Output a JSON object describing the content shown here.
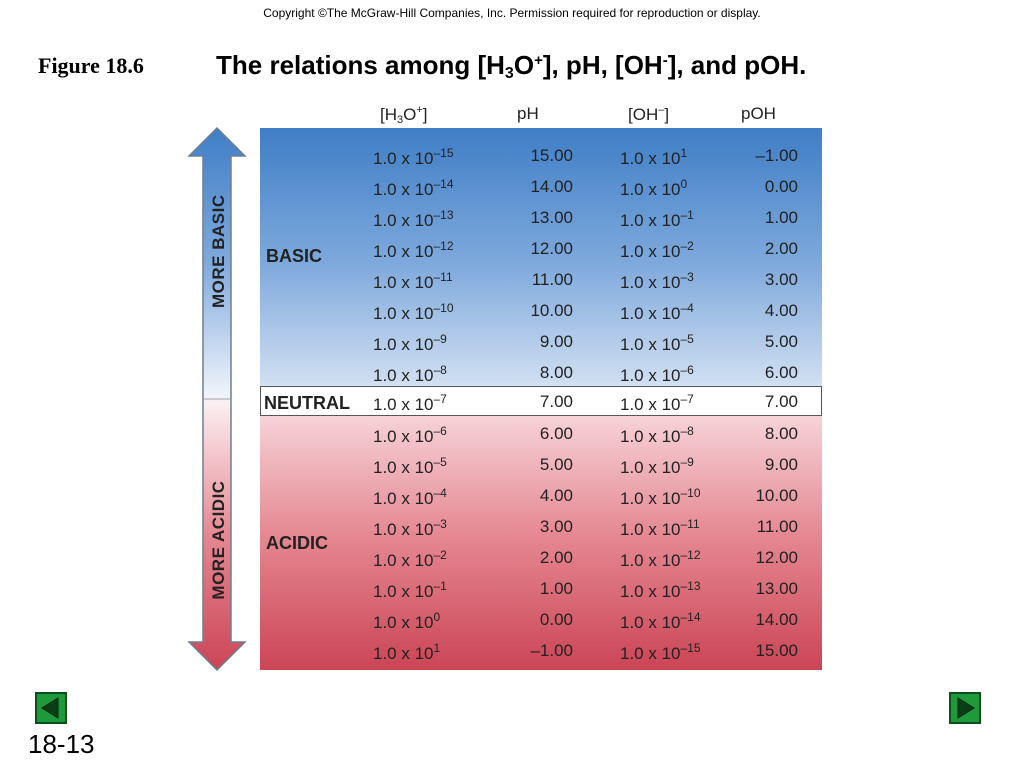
{
  "copyright": "Copyright ©The McGraw-Hill Companies, Inc.  Permission required for reproduction or display.",
  "figure_label": "Figure 18.6",
  "title": {
    "part1": "The relations among [H",
    "sub": "3",
    "part2": "O",
    "sup1": "+",
    "part3": "], pH, [OH",
    "sup2": "-",
    "part4": "], and pOH."
  },
  "headers": {
    "h3o_base": "[H",
    "h3o_sub": "3",
    "h3o_mid": "O",
    "h3o_sup": "+",
    "h3o_end": "]",
    "ph": "pH",
    "oh_base": "[OH",
    "oh_sup": "–",
    "oh_end": "]",
    "poh": "pOH"
  },
  "regions": {
    "basic": "BASIC",
    "neutral": "NEUTRAL",
    "acidic": "ACIDIC"
  },
  "arrow_labels": {
    "more_basic": "MORE BASIC",
    "more_acidic": "MORE ACIDIC"
  },
  "mantissa": "1.0 x 10",
  "rows": [
    {
      "h_exp": "–15",
      "ph": "15.00",
      "oh_exp": "1",
      "poh": "–1.00"
    },
    {
      "h_exp": "–14",
      "ph": "14.00",
      "oh_exp": "0",
      "poh": "0.00"
    },
    {
      "h_exp": "–13",
      "ph": "13.00",
      "oh_exp": "–1",
      "poh": "1.00"
    },
    {
      "h_exp": "–12",
      "ph": "12.00",
      "oh_exp": "–2",
      "poh": "2.00"
    },
    {
      "h_exp": "–11",
      "ph": "11.00",
      "oh_exp": "–3",
      "poh": "3.00"
    },
    {
      "h_exp": "–10",
      "ph": "10.00",
      "oh_exp": "–4",
      "poh": "4.00"
    },
    {
      "h_exp": "–9",
      "ph": "9.00",
      "oh_exp": "–5",
      "poh": "5.00"
    },
    {
      "h_exp": "–8",
      "ph": "8.00",
      "oh_exp": "–6",
      "poh": "6.00"
    },
    {
      "h_exp": "–7",
      "ph": "7.00",
      "oh_exp": "–7",
      "poh": "7.00"
    },
    {
      "h_exp": "–6",
      "ph": "6.00",
      "oh_exp": "–8",
      "poh": "8.00"
    },
    {
      "h_exp": "–5",
      "ph": "5.00",
      "oh_exp": "–9",
      "poh": "9.00"
    },
    {
      "h_exp": "–4",
      "ph": "4.00",
      "oh_exp": "–10",
      "poh": "10.00"
    },
    {
      "h_exp": "–3",
      "ph": "3.00",
      "oh_exp": "–11",
      "poh": "11.00"
    },
    {
      "h_exp": "–2",
      "ph": "2.00",
      "oh_exp": "–12",
      "poh": "12.00"
    },
    {
      "h_exp": "–1",
      "ph": "1.00",
      "oh_exp": "–13",
      "poh": "13.00"
    },
    {
      "h_exp": "0",
      "ph": "0.00",
      "oh_exp": "–14",
      "poh": "14.00"
    },
    {
      "h_exp": "1",
      "ph": "–1.00",
      "oh_exp": "–15",
      "poh": "15.00"
    }
  ],
  "nav": {
    "prev_icon": "triangle-left-icon",
    "next_icon": "triangle-right-icon"
  },
  "slide_number": "18-13",
  "colors": {
    "basic_blue": "#3f7ec6",
    "acidic_red": "#cb4556",
    "nav_green": "#1f9a3a"
  }
}
